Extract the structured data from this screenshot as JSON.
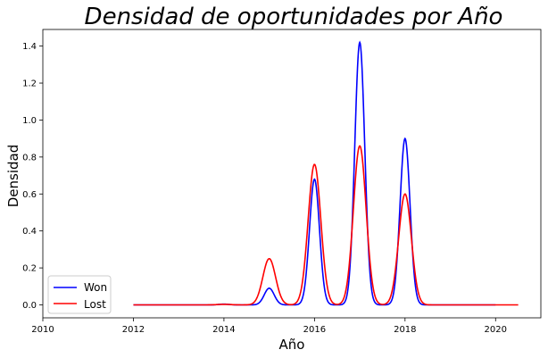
{
  "chart_data": {
    "type": "line",
    "title": "Densidad de oportunidades por Año",
    "xlabel": "Año",
    "ylabel": "Densidad",
    "xlim": [
      2010,
      2021
    ],
    "ylim": [
      -0.07,
      1.49
    ],
    "xticks": [
      "2010",
      "2012",
      "2014",
      "2016",
      "2018",
      "2020"
    ],
    "yticks": [
      "0.0",
      "0.2",
      "0.4",
      "0.6",
      "0.8",
      "1.0",
      "1.2",
      "1.4"
    ],
    "grid": false,
    "legend_position": "lower-left",
    "series": [
      {
        "name": "Won",
        "color": "#0000ff",
        "x_range": [
          2012,
          2020
        ],
        "peaks": [
          {
            "x": 2014,
            "y": 0.004
          },
          {
            "x": 2015,
            "y": 0.09
          },
          {
            "x": 2016,
            "y": 0.68
          },
          {
            "x": 2017,
            "y": 1.42
          },
          {
            "x": 2018,
            "y": 0.9
          }
        ],
        "peak_width": 0.11
      },
      {
        "name": "Lost",
        "color": "#ff0000",
        "x_range": [
          2012,
          2020.5
        ],
        "peaks": [
          {
            "x": 2014,
            "y": 0.003
          },
          {
            "x": 2015,
            "y": 0.25
          },
          {
            "x": 2016,
            "y": 0.76
          },
          {
            "x": 2017,
            "y": 0.86
          },
          {
            "x": 2018,
            "y": 0.6
          }
        ],
        "peak_width": 0.14
      }
    ]
  }
}
